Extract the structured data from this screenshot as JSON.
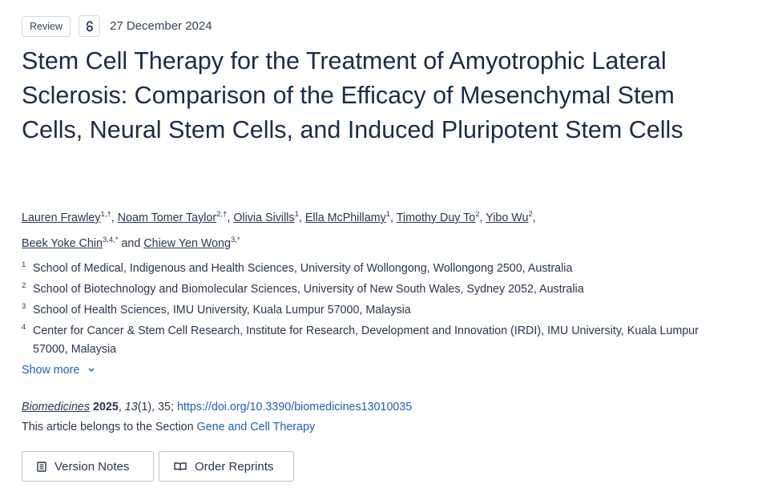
{
  "article_type": "Review",
  "open_access_icon": "open-lock-icon",
  "date": "27 December 2024",
  "title": "Stem Cell Therapy for the Treatment of Amyotrophic Lateral Sclerosis: Comparison of the Efficacy of Mesenchymal Stem Cells, Neural Stem Cells, and Induced Pluripotent Stem Cells",
  "authors": [
    {
      "name": "Lauren Frawley",
      "sup": "1,†"
    },
    {
      "name": "Noam Tomer Taylor",
      "sup": "2,†"
    },
    {
      "name": "Olivia Sivills",
      "sup": "1"
    },
    {
      "name": "Ella McPhillamy",
      "sup": "1"
    },
    {
      "name": "Timothy Duy To",
      "sup": "2"
    },
    {
      "name": "Yibo Wu",
      "sup": "2"
    },
    {
      "name": "Beek Yoke Chin",
      "sup": "3,4,*"
    },
    {
      "name": "Chiew Yen Wong",
      "sup": "3,*"
    }
  ],
  "and_text": "and",
  "affiliations": [
    {
      "num": "1",
      "text": "School of Medical, Indigenous and Health Sciences, University of Wollongong, Wollongong 2500, Australia"
    },
    {
      "num": "2",
      "text": "School of Biotechnology and Biomolecular Sciences, University of New South Wales, Sydney 2052, Australia"
    },
    {
      "num": "3",
      "text": "School of Health Sciences, IMU University, Kuala Lumpur 57000, Malaysia"
    },
    {
      "num": "4",
      "text": "Center for Cancer & Stem Cell Research, Institute for Research, Development and Innovation (IRDI), IMU University, Kuala Lumpur 57000, Malaysia"
    }
  ],
  "show_more": "Show more",
  "citation": {
    "journal": "Biomedicines",
    "year": "2025",
    "volume": "13",
    "issue": "(1), 35; ",
    "doi": "https://doi.org/10.3390/biomedicines13010035"
  },
  "section": {
    "prefix": "This article belongs to the Section ",
    "name": "Gene and Cell Therapy"
  },
  "buttons": {
    "version_notes": "Version Notes",
    "order_reprints": "Order Reprints"
  }
}
